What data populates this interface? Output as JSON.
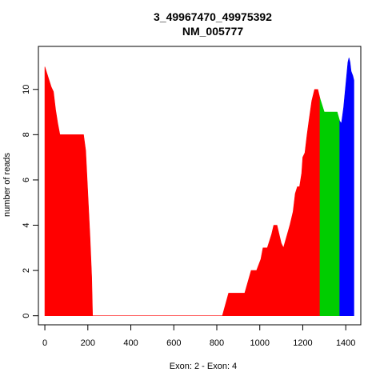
{
  "chart_data": {
    "type": "area",
    "title": "3_49967470_49975392",
    "subtitle": "NM_005777",
    "xlabel": "Exon: 2 - Exon: 4",
    "ylabel": "number of reads",
    "xlim": [
      -30,
      1470
    ],
    "ylim": [
      -0.4,
      11.9
    ],
    "xticks": [
      0,
      200,
      400,
      600,
      800,
      1000,
      1200,
      1400
    ],
    "yticks": [
      0,
      2,
      4,
      6,
      8,
      10
    ],
    "grid": false,
    "legend": "none",
    "series": [
      {
        "color": "#ff0000",
        "points": [
          [
            0,
            11
          ],
          [
            10,
            10.7
          ],
          [
            20,
            10.4
          ],
          [
            30,
            10.1
          ],
          [
            40,
            9.9
          ],
          [
            50,
            9.1
          ],
          [
            60,
            8.5
          ],
          [
            70,
            8
          ],
          [
            100,
            8
          ],
          [
            130,
            8
          ],
          [
            150,
            8
          ],
          [
            180,
            8
          ],
          [
            190,
            7.3
          ],
          [
            200,
            5.4
          ],
          [
            210,
            3.5
          ],
          [
            218,
            1.7
          ],
          [
            222,
            0
          ],
          [
            800,
            0
          ],
          [
            826,
            0
          ],
          [
            855,
            1
          ],
          [
            930,
            1
          ],
          [
            960,
            2
          ],
          [
            985,
            2
          ],
          [
            1005,
            2.5
          ],
          [
            1015,
            3
          ],
          [
            1035,
            3
          ],
          [
            1055,
            3.6
          ],
          [
            1065,
            4
          ],
          [
            1080,
            4
          ],
          [
            1100,
            3.2
          ],
          [
            1110,
            3
          ],
          [
            1125,
            3.5
          ],
          [
            1140,
            4
          ],
          [
            1155,
            4.6
          ],
          [
            1165,
            5.4
          ],
          [
            1175,
            5.7
          ],
          [
            1185,
            5.7
          ],
          [
            1195,
            6.3
          ],
          [
            1200,
            7
          ],
          [
            1210,
            7.2
          ],
          [
            1220,
            8
          ],
          [
            1230,
            8.7
          ],
          [
            1242,
            9.5
          ],
          [
            1255,
            10
          ],
          [
            1270,
            10
          ],
          [
            1280,
            9.6
          ]
        ]
      },
      {
        "color": "#00cd00",
        "points": [
          [
            1280,
            9.6
          ],
          [
            1290,
            9.3
          ],
          [
            1300,
            9
          ],
          [
            1330,
            9
          ],
          [
            1360,
            9
          ],
          [
            1372,
            8.6
          ]
        ]
      },
      {
        "color": "#0000ff",
        "points": [
          [
            1372,
            8.6
          ],
          [
            1380,
            8.5
          ],
          [
            1390,
            9.2
          ],
          [
            1400,
            10.2
          ],
          [
            1410,
            11.2
          ],
          [
            1415,
            11.4
          ],
          [
            1420,
            11.2
          ],
          [
            1425,
            10.8
          ],
          [
            1433,
            10.6
          ],
          [
            1438,
            10.4
          ]
        ]
      }
    ]
  }
}
